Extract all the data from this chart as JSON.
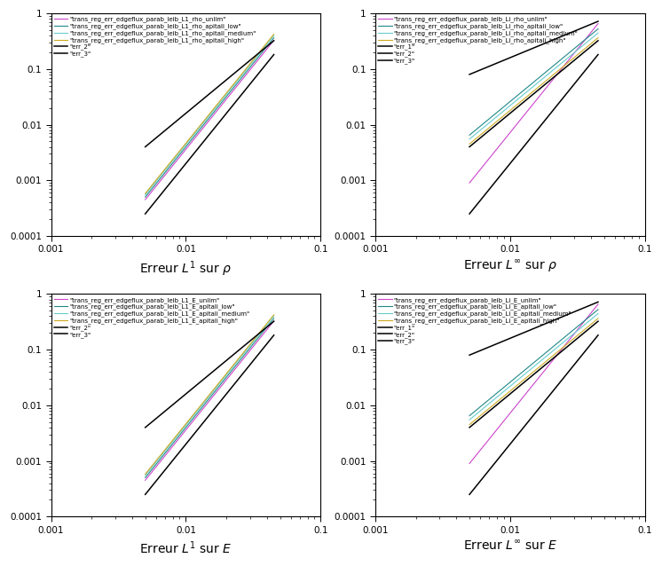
{
  "subplots": [
    {
      "title": "Erreur $L^1$ sur $\\rho$",
      "legend_labels": [
        "\"trans_reg_err_edgeflux_parab_leib_L1_rho_unlim\"",
        "\"trans_reg_err_edgeflux_parab_leib_L1_rho_apitali_low\"",
        "\"trans_reg_err_edgeflux_parab_leib_L1_rho_apitali_medium\"",
        "\"trans_reg_err_edgeflux_parab_leib_L1_rho_apitali_high\"",
        "\"err_2\"",
        "\"err_3\""
      ],
      "line_colors": [
        "#cc44cc",
        "#228888",
        "#66cccc",
        "#ccaa22",
        "#000000",
        "#000000"
      ],
      "line_slopes": [
        3,
        3,
        3,
        3,
        2,
        3
      ],
      "line_x": [
        [
          0.005,
          0.045
        ],
        [
          0.005,
          0.045
        ],
        [
          0.005,
          0.045
        ],
        [
          0.005,
          0.045
        ],
        [
          0.005,
          0.045
        ],
        [
          0.005,
          0.045
        ]
      ],
      "line_y0": [
        0.00045,
        0.0005,
        0.00055,
        0.00058,
        0.004,
        0.00025
      ],
      "xlim": [
        0.001,
        0.1
      ],
      "ylim": [
        0.0001,
        1.0
      ],
      "has_err1": false
    },
    {
      "title": "Erreur $L^\\infty$ sur $\\rho$",
      "legend_labels": [
        "\"trans_reg_err_edgeflux_parab_leib_Li_rho_unlim\"",
        "\"trans_reg_err_edgeflux_parab_leib_Li_rho_apitali_low\"",
        "\"trans_reg_err_edgeflux_parab_leib_Li_rho_apitali_medium\"",
        "\"trans_reg_err_edgeflux_parab_leib_Li_rho_apitali_high\"",
        "\"err_1\"",
        "\"err_2\"",
        "\"err_3\""
      ],
      "line_colors": [
        "#cc44cc",
        "#228888",
        "#66cccc",
        "#ccaa22",
        "#000000",
        "#000000",
        "#000000"
      ],
      "line_slopes": [
        3,
        2,
        2,
        2,
        1,
        2,
        3
      ],
      "line_x": [
        [
          0.005,
          0.045
        ],
        [
          0.005,
          0.045
        ],
        [
          0.005,
          0.045
        ],
        [
          0.005,
          0.045
        ],
        [
          0.005,
          0.045
        ],
        [
          0.005,
          0.045
        ],
        [
          0.005,
          0.045
        ]
      ],
      "line_y0": [
        0.0009,
        0.0065,
        0.0055,
        0.0045,
        0.08,
        0.004,
        0.00025
      ],
      "xlim": [
        0.001,
        0.1
      ],
      "ylim": [
        0.0001,
        1.0
      ],
      "has_err1": true
    },
    {
      "title": "Erreur $L^1$ sur $E$",
      "legend_labels": [
        "\"trans_reg_err_edgeflux_parab_leib_L1_E_unlim\"",
        "\"trans_reg_err_edgeflux_parab_leib_L1_E_apitali_low\"",
        "\"trans_reg_err_edgeflux_parab_leib_L1_E_apitali_medium\"",
        "\"trans_reg_err_edgeflux_parab_leib_L1_E_apitali_high\"",
        "\"err_2\"",
        "\"err_3\""
      ],
      "line_colors": [
        "#cc44cc",
        "#228888",
        "#66cccc",
        "#ccaa22",
        "#000000",
        "#000000"
      ],
      "line_slopes": [
        3,
        3,
        3,
        3,
        2,
        3
      ],
      "line_x": [
        [
          0.005,
          0.045
        ],
        [
          0.005,
          0.045
        ],
        [
          0.005,
          0.045
        ],
        [
          0.005,
          0.045
        ],
        [
          0.005,
          0.045
        ],
        [
          0.005,
          0.045
        ]
      ],
      "line_y0": [
        0.00045,
        0.0005,
        0.00055,
        0.00058,
        0.004,
        0.00025
      ],
      "xlim": [
        0.001,
        0.1
      ],
      "ylim": [
        0.0001,
        1.0
      ],
      "has_err1": false
    },
    {
      "title": "Erreur $L^\\infty$ sur $E$",
      "legend_labels": [
        "\"trans_reg_err_edgeflux_parab_leib_Li_E_unlim\"",
        "\"trans_reg_err_edgeflux_parab_leib_Li_E_apitali_low\"",
        "\"trans_reg_err_edgeflux_parab_leib_Li_E_apitali_medium\"",
        "\"trans_reg_err_edgeflux_parab_leib_Li_E_apitali_high\"",
        "\"err_1\"",
        "\"err_2\"",
        "\"err_3\""
      ],
      "line_colors": [
        "#cc44cc",
        "#228888",
        "#66cccc",
        "#ccaa22",
        "#000000",
        "#000000",
        "#000000"
      ],
      "line_slopes": [
        3,
        2,
        2,
        2,
        1,
        2,
        3
      ],
      "line_x": [
        [
          0.005,
          0.045
        ],
        [
          0.005,
          0.045
        ],
        [
          0.005,
          0.045
        ],
        [
          0.005,
          0.045
        ],
        [
          0.005,
          0.045
        ],
        [
          0.005,
          0.045
        ],
        [
          0.005,
          0.045
        ]
      ],
      "line_y0": [
        0.0009,
        0.0065,
        0.0055,
        0.0045,
        0.08,
        0.004,
        0.00025
      ],
      "xlim": [
        0.001,
        0.1
      ],
      "ylim": [
        0.0001,
        1.0
      ],
      "has_err1": true
    }
  ],
  "background_color": "#ffffff",
  "legend_fontsize": 5.0,
  "xlabel_fontsize": 10,
  "tick_fontsize": 7.5
}
